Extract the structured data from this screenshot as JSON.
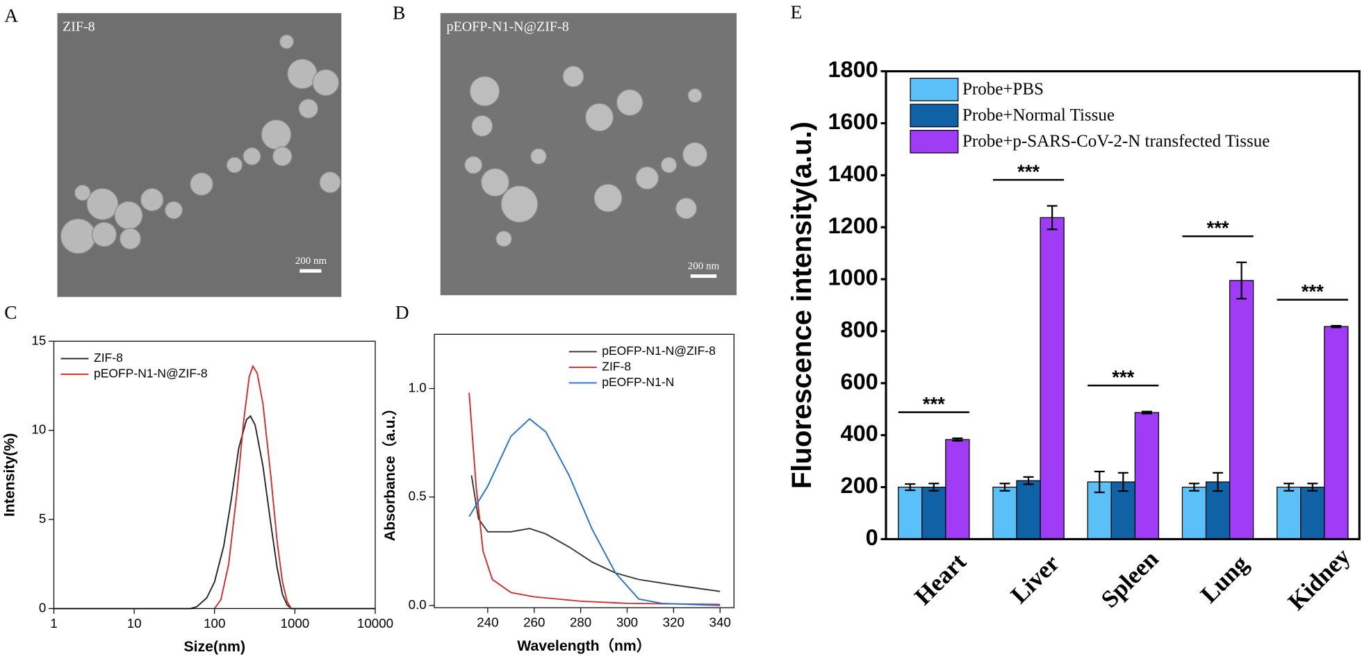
{
  "panel_letters": [
    "A",
    "B",
    "C",
    "D",
    "E"
  ],
  "images": [
    {
      "label": "ZIF-8",
      "scale_bar": "200 nm"
    },
    {
      "label": "pEOFP-N1-N@ZIF-8",
      "scale_bar": "200 nm"
    }
  ],
  "chart_data": [
    {
      "type": "line",
      "xlabel": "Size(nm)",
      "ylabel": "Intensity(%)",
      "xscale": "log",
      "xlim": [
        1,
        10000
      ],
      "xticks": [
        1,
        10,
        100,
        1000,
        10000
      ],
      "ylim": [
        0,
        15
      ],
      "yticks": [
        0,
        5,
        10,
        15
      ],
      "legend": "upper left",
      "series": [
        {
          "name": "ZIF-8",
          "color": "#222222",
          "x": [
            1,
            50,
            60,
            80,
            100,
            130,
            160,
            200,
            250,
            280,
            320,
            400,
            500,
            600,
            700,
            800,
            900,
            1000,
            10000
          ],
          "values": [
            0,
            0,
            0.1,
            0.6,
            1.5,
            3.5,
            6.0,
            9.0,
            10.6,
            10.8,
            10.3,
            8.0,
            4.8,
            2.3,
            0.8,
            0.2,
            0,
            0,
            0
          ]
        },
        {
          "name": "pEOFP-N1-N@ZIF-8",
          "color": "#d62728",
          "x": [
            100,
            120,
            150,
            190,
            230,
            270,
            300,
            340,
            400,
            500,
            600,
            700,
            800,
            900
          ],
          "values": [
            0,
            0.5,
            2.5,
            6.5,
            10.5,
            13.0,
            13.6,
            13.2,
            11.5,
            7.5,
            3.8,
            1.5,
            0.4,
            0
          ]
        }
      ]
    },
    {
      "type": "line",
      "xlabel": "Wavelength（nm）",
      "ylabel": "Absorbance（a.u.）",
      "xlim": [
        217,
        346
      ],
      "xticks": [
        240,
        260,
        280,
        300,
        320,
        340
      ],
      "ylim": [
        -0.01,
        1.25
      ],
      "yticks": [
        {
          "value": 0,
          "label": "0.0"
        },
        {
          "value": 0.5,
          "label": "0.5"
        },
        {
          "value": 1,
          "label": "1.0"
        }
      ],
      "legend": "upper right",
      "series": [
        {
          "name": "pEOFP-N1-N@ZIF-8",
          "color": "#333333",
          "x": [
            233,
            236,
            240,
            250,
            258,
            265,
            275,
            285,
            295,
            305,
            320,
            340
          ],
          "values": [
            0.6,
            0.4,
            0.34,
            0.34,
            0.355,
            0.33,
            0.27,
            0.2,
            0.15,
            0.12,
            0.095,
            0.065
          ]
        },
        {
          "name": "ZIF-8",
          "color": "#d62728",
          "x": [
            232,
            235,
            238,
            242,
            250,
            260,
            280,
            300,
            340
          ],
          "values": [
            0.98,
            0.55,
            0.25,
            0.12,
            0.06,
            0.04,
            0.02,
            0.01,
            0.005
          ]
        },
        {
          "name": "pEOFP-N1-N",
          "color": "#1f6fd1",
          "x": [
            232,
            240,
            250,
            258,
            265,
            275,
            285,
            295,
            305,
            315,
            340
          ],
          "values": [
            0.41,
            0.55,
            0.78,
            0.86,
            0.8,
            0.6,
            0.35,
            0.15,
            0.03,
            0.01,
            0
          ]
        }
      ]
    },
    {
      "type": "bar",
      "ylabel": "Fluorescence intensity(a.u.)",
      "categories": [
        "Heart",
        "Liver",
        "Spleen",
        "Lung",
        "Kidney"
      ],
      "ylim": [
        0,
        1800
      ],
      "yticks": [
        0,
        200,
        400,
        600,
        800,
        1000,
        1200,
        1400,
        1600,
        1800
      ],
      "legend": "upper left",
      "annotations": [
        "***",
        "***",
        "***",
        "***",
        "***"
      ],
      "series": [
        {
          "name": "Probe+PBS",
          "color": "#5bc0f8",
          "values": [
            200,
            200,
            220,
            200,
            200
          ],
          "errors": [
            12,
            14,
            40,
            14,
            14
          ]
        },
        {
          "name": "Probe+Normal Tissue",
          "color": "#0f62a6",
          "values": [
            200,
            225,
            220,
            220,
            200
          ],
          "errors": [
            14,
            14,
            35,
            35,
            14
          ]
        },
        {
          "name": "Probe+p-SARS-CoV-2-N transfected Tissue",
          "color": "#a03cf5",
          "values": [
            383,
            1237,
            487,
            995,
            818
          ],
          "errors": [
            5,
            45,
            4,
            70,
            3
          ]
        }
      ]
    }
  ]
}
